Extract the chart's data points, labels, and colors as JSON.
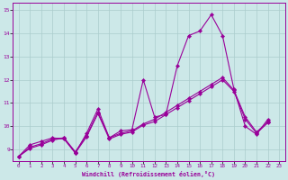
{
  "xlabel": "Windchill (Refroidissement éolien,°C)",
  "bg_color": "#cce8e8",
  "line_color": "#990099",
  "grid_color": "#aacccc",
  "xlim": [
    -0.5,
    23.5
  ],
  "ylim": [
    8.5,
    15.3
  ],
  "xticks": [
    0,
    1,
    2,
    3,
    4,
    5,
    6,
    7,
    8,
    9,
    10,
    11,
    12,
    13,
    14,
    15,
    16,
    17,
    18,
    19,
    20,
    21,
    22,
    23
  ],
  "yticks": [
    9,
    10,
    11,
    12,
    13,
    14,
    15
  ],
  "series1_y": [
    8.7,
    9.2,
    9.35,
    9.5,
    9.45,
    8.85,
    9.7,
    10.75,
    9.5,
    9.8,
    9.85,
    12.0,
    10.4,
    10.5,
    12.6,
    13.9,
    14.1,
    14.8,
    13.9,
    11.6,
    10.0,
    9.65,
    10.3
  ],
  "series2_y": [
    8.7,
    9.1,
    9.25,
    9.45,
    9.5,
    8.85,
    9.55,
    10.55,
    9.45,
    9.65,
    9.75,
    10.05,
    10.2,
    10.5,
    10.8,
    11.1,
    11.4,
    11.7,
    12.0,
    11.5,
    10.3,
    9.7,
    10.15
  ],
  "series3_y": [
    8.7,
    9.05,
    9.2,
    9.4,
    9.5,
    8.9,
    9.6,
    10.6,
    9.5,
    9.7,
    9.8,
    10.1,
    10.3,
    10.6,
    10.9,
    11.2,
    11.5,
    11.8,
    12.1,
    11.55,
    10.4,
    9.75,
    10.2
  ]
}
